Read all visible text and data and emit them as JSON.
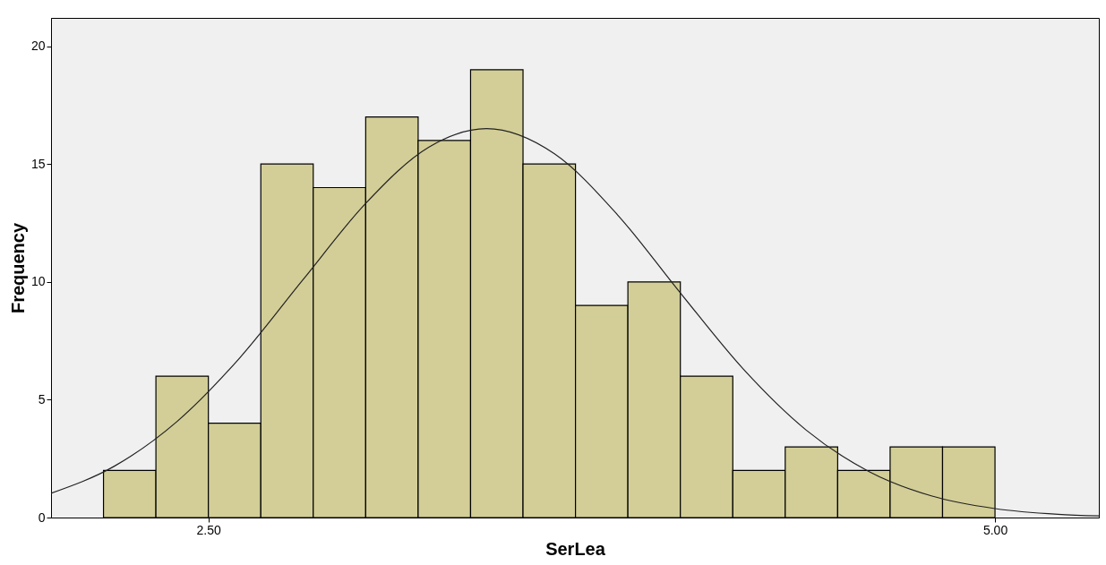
{
  "chart_data": {
    "type": "histogram",
    "xlabel": "SerLea",
    "ylabel": "Frequency",
    "bins": [
      2.1667,
      2.3333,
      2.5,
      2.6667,
      2.8333,
      3.0,
      3.1667,
      3.3333,
      3.5,
      3.6667,
      3.8333,
      4.0,
      4.1667,
      4.3333,
      4.5,
      4.6667,
      4.8333,
      5.0
    ],
    "values": [
      2,
      6,
      4,
      15,
      14,
      17,
      16,
      19,
      15,
      9,
      10,
      6,
      2,
      3,
      2,
      3,
      3
    ],
    "color": "#d3ce97",
    "series": [
      {
        "type": "line",
        "color": "#222222",
        "x": [
          2.0,
          2.2,
          2.4,
          2.6,
          2.8,
          3.0,
          3.2,
          3.384,
          3.6,
          3.8,
          4.0,
          4.2,
          4.4,
          4.6,
          4.8,
          5.0,
          5.2,
          5.33
        ],
        "values": [
          1.03,
          2.17,
          4.07,
          6.78,
          10.08,
          13.33,
          15.71,
          16.5,
          15.43,
          12.85,
          9.53,
          6.3,
          3.71,
          1.95,
          0.91,
          0.38,
          0.14,
          0.07
        ]
      }
    ],
    "xlim": [
      2.0,
      5.33
    ],
    "ylim": [
      0,
      21.2
    ],
    "xticks": [
      {
        "value": 2.5,
        "label": "2.50"
      },
      {
        "value": 5.0,
        "label": "5.00"
      }
    ],
    "yticks": [
      0,
      5,
      10,
      15,
      20
    ],
    "grid": false
  }
}
